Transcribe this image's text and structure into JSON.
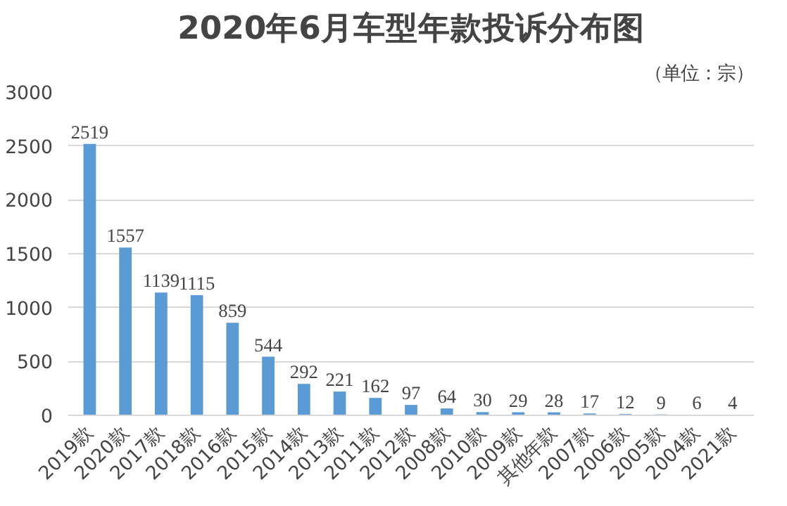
{
  "chart_data": {
    "type": "bar",
    "title": "2020年6月车型年款投诉分布图",
    "subtitle": "（单位：宗）",
    "categories": [
      "2019款",
      "2020款",
      "2017款",
      "2018款",
      "2016款",
      "2015款",
      "2014款",
      "2013款",
      "2011款",
      "2012款",
      "2008款",
      "2010款",
      "2009款",
      "其他年款",
      "2007款",
      "2006款",
      "2005款",
      "2004款",
      "2021款"
    ],
    "values": [
      2519,
      1557,
      1139,
      1115,
      859,
      544,
      292,
      221,
      162,
      97,
      64,
      30,
      29,
      28,
      17,
      12,
      9,
      6,
      4
    ],
    "color": "#5b9bd5",
    "ylim": [
      0,
      3000
    ],
    "yticks": [
      0,
      500,
      1000,
      1500,
      2000,
      2500,
      3000
    ],
    "grid": "y",
    "data_labels": true
  }
}
